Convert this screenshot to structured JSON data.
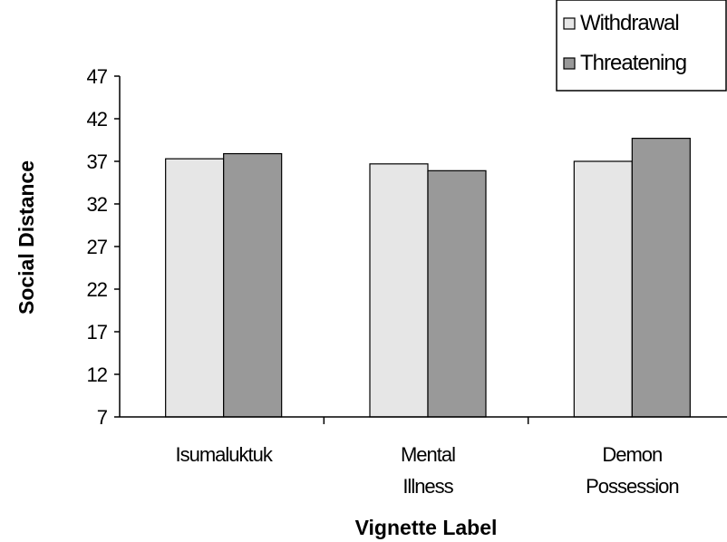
{
  "chart_data": {
    "type": "bar",
    "categories": [
      [
        "Isumaluktuk"
      ],
      [
        "Mental",
        "Illness"
      ],
      [
        "Demon",
        "Possession"
      ]
    ],
    "series": [
      {
        "name": "Withdrawal",
        "color": "#e6e6e6",
        "values": [
          37.3,
          36.7,
          37.0
        ]
      },
      {
        "name": "Threatening",
        "color": "#999999",
        "values": [
          37.9,
          35.9,
          39.7
        ]
      }
    ],
    "title": "",
    "xlabel": "Vignette Label",
    "ylabel": "Social Distance",
    "ylim": [
      7,
      47
    ],
    "yticks": [
      7,
      12,
      17,
      22,
      27,
      32,
      37,
      42,
      47
    ],
    "grid": false,
    "legend_position": "top-right"
  }
}
